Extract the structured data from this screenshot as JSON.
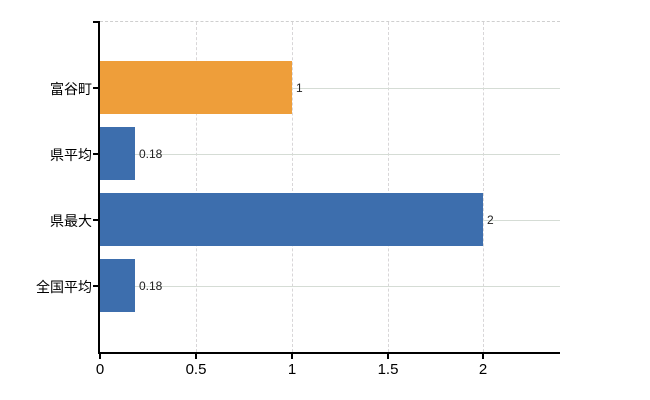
{
  "chart_data": {
    "type": "bar",
    "orientation": "horizontal",
    "title": "",
    "xlabel": "",
    "ylabel": "",
    "categories": [
      "富谷町",
      "県平均",
      "県最大",
      "全国平均"
    ],
    "values": [
      1,
      0.18,
      2,
      0.18
    ],
    "value_labels": [
      "1",
      "0.18",
      "2",
      "0.18"
    ],
    "bar_colors": [
      "#EE9E3A",
      "#3D6EAD",
      "#3D6EAD",
      "#3D6EAD"
    ],
    "x_ticks": [
      0,
      0.5,
      1,
      1.5,
      2
    ],
    "x_tick_labels": [
      "0",
      "0.5",
      "1",
      "1.5",
      "2"
    ],
    "xlim": [
      0,
      2.4
    ],
    "grid": true,
    "legend_position": "none"
  },
  "colors": {
    "background": "#ffffff",
    "axis_line": "#000000",
    "tick_mark": "#000000",
    "grid_horizontal": "#d5dcd5",
    "grid_vertical": "#d8d6d8",
    "plot_top_border": "#cfcfcf",
    "category_text": "#000000",
    "tick_text": "#000000",
    "value_text": "#222222",
    "highlight_bar": "#EE9E3A",
    "default_bar": "#3D6EAD"
  }
}
